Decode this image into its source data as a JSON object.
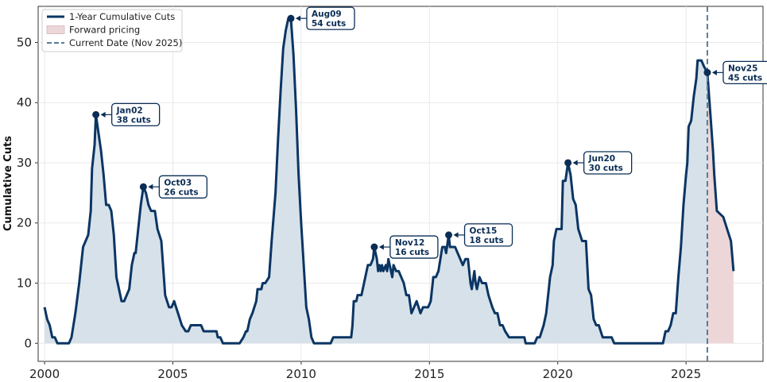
{
  "chart_data": {
    "type": "area",
    "ylabel": "Cumulative Cuts",
    "xlabel": "",
    "xlim": [
      1999.75,
      2028.0
    ],
    "ylim": [
      -3,
      56
    ],
    "x_ticks": [
      2000,
      2005,
      2010,
      2015,
      2020,
      2025
    ],
    "x_tick_labels": [
      "2000",
      "2005",
      "2010",
      "2015",
      "2020",
      "2025"
    ],
    "y_ticks": [
      0,
      10,
      20,
      30,
      40,
      50
    ],
    "y_tick_labels": [
      "0",
      "10",
      "20",
      "30",
      "40",
      "50"
    ],
    "grid": true,
    "legend_position": "top-left",
    "colors": {
      "line": "#0b3563",
      "fill": "#d4dfe8",
      "forward_fill": "#ecd6d8",
      "current_date": "#5a7d98",
      "annotation": "#0b2d55"
    },
    "legend": [
      {
        "label": "1-Year Cumulative Cuts",
        "kind": "line"
      },
      {
        "label": "Forward pricing",
        "kind": "patch"
      },
      {
        "label": "Current Date (Nov 2025)",
        "kind": "dashed"
      }
    ],
    "current_date_x": 2025.83,
    "series": [
      {
        "name": "1-Year Cumulative Cuts",
        "points": [
          [
            2000.0,
            6
          ],
          [
            2000.1,
            4
          ],
          [
            2000.2,
            3
          ],
          [
            2000.3,
            1
          ],
          [
            2000.4,
            1
          ],
          [
            2000.5,
            0
          ],
          [
            2000.8,
            0
          ],
          [
            2000.95,
            0
          ],
          [
            2001.05,
            1
          ],
          [
            2001.2,
            5
          ],
          [
            2001.35,
            10
          ],
          [
            2001.5,
            16
          ],
          [
            2001.7,
            18
          ],
          [
            2001.8,
            22
          ],
          [
            2001.85,
            29
          ],
          [
            2001.95,
            33
          ],
          [
            2002.0,
            38
          ],
          [
            2002.1,
            35
          ],
          [
            2002.2,
            32
          ],
          [
            2002.3,
            28
          ],
          [
            2002.4,
            23
          ],
          [
            2002.5,
            23
          ],
          [
            2002.6,
            22
          ],
          [
            2002.7,
            18
          ],
          [
            2002.8,
            11
          ],
          [
            2002.9,
            9
          ],
          [
            2003.0,
            7
          ],
          [
            2003.1,
            7
          ],
          [
            2003.2,
            8
          ],
          [
            2003.3,
            9
          ],
          [
            2003.4,
            13
          ],
          [
            2003.5,
            15
          ],
          [
            2003.55,
            15
          ],
          [
            2003.65,
            19
          ],
          [
            2003.75,
            23
          ],
          [
            2003.85,
            26
          ],
          [
            2003.95,
            25
          ],
          [
            2004.05,
            23
          ],
          [
            2004.15,
            22
          ],
          [
            2004.3,
            22
          ],
          [
            2004.4,
            19
          ],
          [
            2004.55,
            17
          ],
          [
            2004.7,
            8
          ],
          [
            2004.85,
            6
          ],
          [
            2004.95,
            6
          ],
          [
            2005.05,
            7
          ],
          [
            2005.2,
            5
          ],
          [
            2005.35,
            3
          ],
          [
            2005.5,
            2
          ],
          [
            2005.6,
            2
          ],
          [
            2005.7,
            3
          ],
          [
            2005.8,
            3
          ],
          [
            2006.0,
            3
          ],
          [
            2006.1,
            3
          ],
          [
            2006.2,
            2
          ],
          [
            2006.5,
            2
          ],
          [
            2006.7,
            2
          ],
          [
            2006.75,
            1
          ],
          [
            2006.85,
            1
          ],
          [
            2006.95,
            0
          ],
          [
            2007.2,
            0
          ],
          [
            2007.6,
            0
          ],
          [
            2007.75,
            1
          ],
          [
            2007.85,
            2
          ],
          [
            2007.9,
            2
          ],
          [
            2008.0,
            4
          ],
          [
            2008.1,
            5
          ],
          [
            2008.25,
            7
          ],
          [
            2008.3,
            9
          ],
          [
            2008.45,
            9
          ],
          [
            2008.5,
            10
          ],
          [
            2008.6,
            10
          ],
          [
            2008.75,
            11
          ],
          [
            2008.85,
            17
          ],
          [
            2009.0,
            25
          ],
          [
            2009.1,
            34
          ],
          [
            2009.2,
            42
          ],
          [
            2009.3,
            49
          ],
          [
            2009.4,
            52
          ],
          [
            2009.5,
            54
          ],
          [
            2009.6,
            54
          ],
          [
            2009.7,
            48
          ],
          [
            2009.8,
            39
          ],
          [
            2009.9,
            28
          ],
          [
            2010.0,
            20
          ],
          [
            2010.1,
            13
          ],
          [
            2010.2,
            6
          ],
          [
            2010.3,
            4
          ],
          [
            2010.4,
            1
          ],
          [
            2010.5,
            0
          ],
          [
            2010.8,
            0
          ],
          [
            2011.0,
            0
          ],
          [
            2011.15,
            0
          ],
          [
            2011.25,
            1
          ],
          [
            2011.4,
            1
          ],
          [
            2011.6,
            1
          ],
          [
            2011.8,
            1
          ],
          [
            2011.95,
            1
          ],
          [
            2012.0,
            3
          ],
          [
            2012.05,
            7
          ],
          [
            2012.15,
            7
          ],
          [
            2012.2,
            8
          ],
          [
            2012.35,
            8
          ],
          [
            2012.45,
            10
          ],
          [
            2012.6,
            13
          ],
          [
            2012.7,
            13
          ],
          [
            2012.8,
            14
          ],
          [
            2012.85,
            16
          ],
          [
            2012.95,
            14
          ],
          [
            2013.0,
            12
          ],
          [
            2013.05,
            13
          ],
          [
            2013.1,
            12
          ],
          [
            2013.15,
            13
          ],
          [
            2013.2,
            12
          ],
          [
            2013.3,
            13
          ],
          [
            2013.35,
            12
          ],
          [
            2013.4,
            14
          ],
          [
            2013.5,
            12
          ],
          [
            2013.55,
            11
          ],
          [
            2013.6,
            13
          ],
          [
            2013.7,
            12
          ],
          [
            2013.8,
            12
          ],
          [
            2013.9,
            11
          ],
          [
            2014.0,
            10
          ],
          [
            2014.1,
            8
          ],
          [
            2014.2,
            8
          ],
          [
            2014.3,
            5
          ],
          [
            2014.4,
            6
          ],
          [
            2014.5,
            7
          ],
          [
            2014.65,
            5
          ],
          [
            2014.75,
            6
          ],
          [
            2014.85,
            6
          ],
          [
            2014.95,
            6
          ],
          [
            2015.05,
            7
          ],
          [
            2015.15,
            11
          ],
          [
            2015.25,
            11
          ],
          [
            2015.35,
            12
          ],
          [
            2015.5,
            16
          ],
          [
            2015.6,
            16
          ],
          [
            2015.65,
            15
          ],
          [
            2015.75,
            18
          ],
          [
            2015.8,
            16
          ],
          [
            2015.9,
            16
          ],
          [
            2016.0,
            16
          ],
          [
            2016.1,
            15
          ],
          [
            2016.2,
            14
          ],
          [
            2016.3,
            13
          ],
          [
            2016.4,
            14
          ],
          [
            2016.5,
            14
          ],
          [
            2016.6,
            10
          ],
          [
            2016.65,
            9
          ],
          [
            2016.75,
            12
          ],
          [
            2016.8,
            10
          ],
          [
            2016.85,
            9
          ],
          [
            2016.95,
            11
          ],
          [
            2017.05,
            10
          ],
          [
            2017.2,
            10
          ],
          [
            2017.3,
            8
          ],
          [
            2017.45,
            6
          ],
          [
            2017.55,
            5
          ],
          [
            2017.65,
            5
          ],
          [
            2017.75,
            3
          ],
          [
            2017.85,
            3
          ],
          [
            2017.95,
            2
          ],
          [
            2018.1,
            1
          ],
          [
            2018.4,
            1
          ],
          [
            2018.7,
            1
          ],
          [
            2018.75,
            0
          ],
          [
            2018.85,
            0
          ],
          [
            2019.1,
            0
          ],
          [
            2019.2,
            1
          ],
          [
            2019.3,
            1
          ],
          [
            2019.45,
            3
          ],
          [
            2019.55,
            5
          ],
          [
            2019.7,
            11
          ],
          [
            2019.8,
            13
          ],
          [
            2019.85,
            17
          ],
          [
            2019.95,
            19
          ],
          [
            2020.15,
            19
          ],
          [
            2020.2,
            27
          ],
          [
            2020.3,
            27
          ],
          [
            2020.4,
            30
          ],
          [
            2020.5,
            28
          ],
          [
            2020.6,
            24
          ],
          [
            2020.7,
            23
          ],
          [
            2020.8,
            19
          ],
          [
            2020.95,
            17
          ],
          [
            2021.1,
            17
          ],
          [
            2021.2,
            9
          ],
          [
            2021.3,
            8
          ],
          [
            2021.4,
            4
          ],
          [
            2021.5,
            3
          ],
          [
            2021.6,
            3
          ],
          [
            2021.75,
            1
          ],
          [
            2021.9,
            1
          ],
          [
            2022.0,
            1
          ],
          [
            2022.1,
            1
          ],
          [
            2022.2,
            0
          ],
          [
            2022.5,
            0
          ],
          [
            2022.8,
            0
          ],
          [
            2023.1,
            0
          ],
          [
            2023.4,
            0
          ],
          [
            2023.7,
            0
          ],
          [
            2024.0,
            0
          ],
          [
            2024.1,
            0
          ],
          [
            2024.2,
            2
          ],
          [
            2024.3,
            2
          ],
          [
            2024.4,
            3
          ],
          [
            2024.5,
            5
          ],
          [
            2024.6,
            5
          ],
          [
            2024.7,
            11
          ],
          [
            2024.8,
            16
          ],
          [
            2024.9,
            23
          ],
          [
            2025.0,
            28
          ],
          [
            2025.05,
            30
          ],
          [
            2025.1,
            36
          ],
          [
            2025.2,
            37
          ],
          [
            2025.3,
            41
          ],
          [
            2025.4,
            44
          ],
          [
            2025.45,
            47
          ],
          [
            2025.6,
            47
          ],
          [
            2025.7,
            46
          ],
          [
            2025.83,
            45
          ]
        ]
      },
      {
        "name": "Forward pricing",
        "points": [
          [
            2025.83,
            45
          ],
          [
            2025.95,
            38
          ],
          [
            2026.05,
            32
          ],
          [
            2026.1,
            28
          ],
          [
            2026.2,
            22
          ],
          [
            2026.45,
            21
          ],
          [
            2026.6,
            19
          ],
          [
            2026.75,
            17
          ],
          [
            2026.85,
            12
          ]
        ]
      }
    ],
    "annotations": [
      {
        "label": "Jan02",
        "value": "38 cuts",
        "x": 2002.0,
        "y": 38
      },
      {
        "label": "Oct03",
        "value": "26 cuts",
        "x": 2003.85,
        "y": 26
      },
      {
        "label": "Aug09",
        "value": "54 cuts",
        "x": 2009.6,
        "y": 54
      },
      {
        "label": "Nov12",
        "value": "16 cuts",
        "x": 2012.85,
        "y": 16
      },
      {
        "label": "Oct15",
        "value": "18 cuts",
        "x": 2015.75,
        "y": 18
      },
      {
        "label": "Jun20",
        "value": "30 cuts",
        "x": 2020.4,
        "y": 30
      },
      {
        "label": "Nov25",
        "value": "45 cuts",
        "x": 2025.83,
        "y": 45
      }
    ]
  }
}
